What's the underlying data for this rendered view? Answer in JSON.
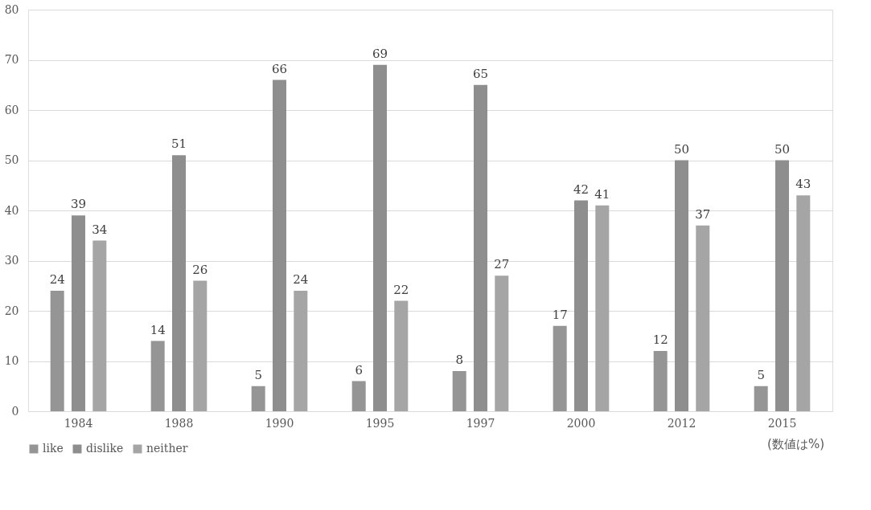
{
  "chart_data": {
    "type": "bar",
    "categories": [
      "1984",
      "1988",
      "1990",
      "1995",
      "1997",
      "2000",
      "2012",
      "2015"
    ],
    "series": [
      {
        "name": "like",
        "color": "#959595",
        "values": [
          24,
          14,
          5,
          6,
          8,
          17,
          12,
          5
        ]
      },
      {
        "name": "dislike",
        "color": "#8e8e8e",
        "values": [
          39,
          51,
          66,
          69,
          65,
          42,
          50,
          50
        ]
      },
      {
        "name": "neither",
        "color": "#a5a5a5",
        "values": [
          34,
          26,
          24,
          22,
          27,
          41,
          37,
          43
        ]
      }
    ],
    "ylim": [
      0,
      80
    ],
    "yticks": [
      0,
      10,
      20,
      30,
      40,
      50,
      60,
      70,
      80
    ],
    "grid": "y",
    "legend": "bottom",
    "data_labels": true,
    "annotations": [
      "(数値は%)"
    ]
  }
}
